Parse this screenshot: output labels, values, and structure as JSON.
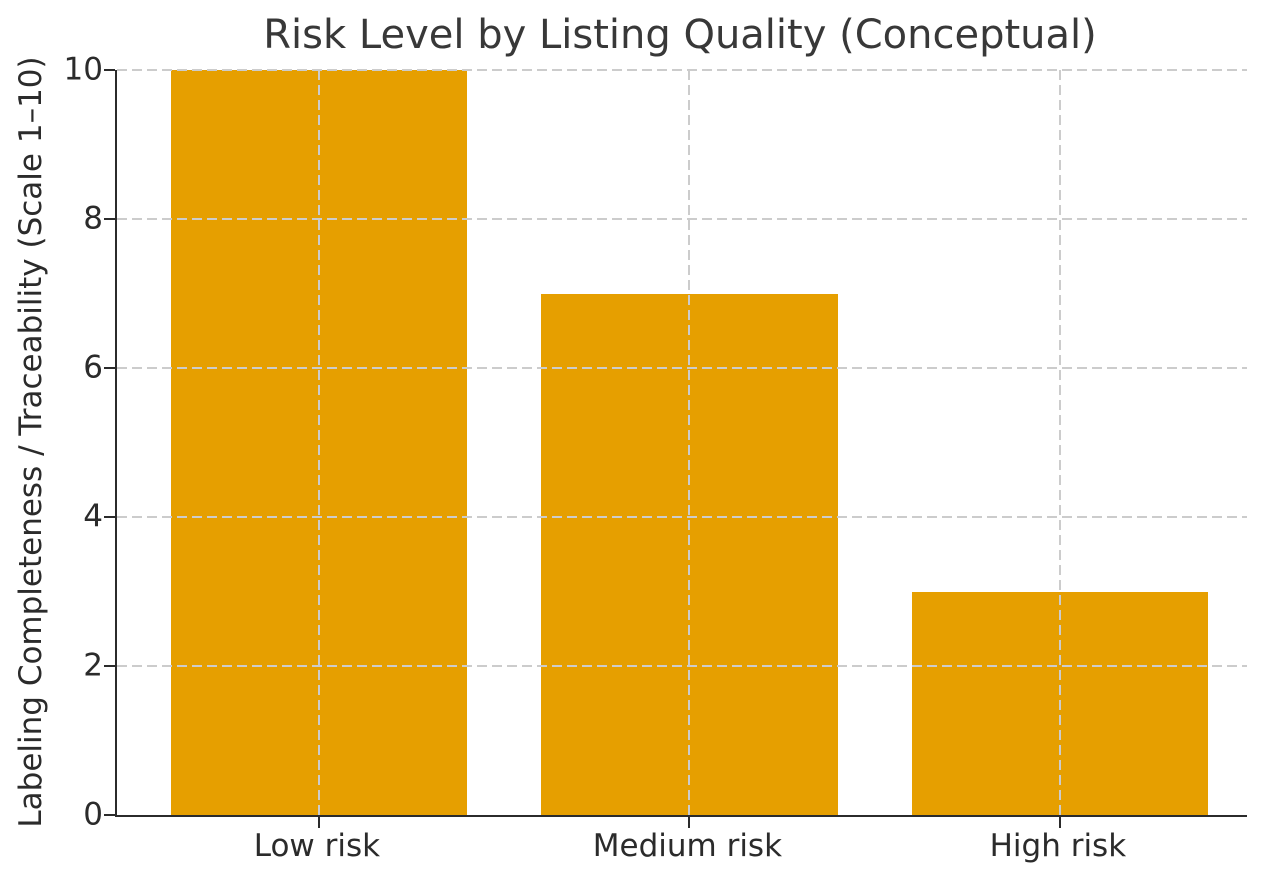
{
  "chart_data": {
    "type": "bar",
    "title": "Risk Level by Listing Quality (Conceptual)",
    "categories": [
      "Low risk",
      "Medium risk",
      "High risk"
    ],
    "values": [
      10,
      7,
      3
    ],
    "xlabel": "",
    "ylabel": "Labeling Completeness / Traceability (Scale 1–10)",
    "ylim": [
      0,
      10
    ],
    "yticks": [
      0,
      2,
      4,
      6,
      8,
      10
    ],
    "bar_color": "#E69F00",
    "bar_width_fraction": 0.8,
    "grid": true,
    "grid_line_style": "dashed",
    "grid_color": "#cccccc",
    "axis_color": "#2b2b2b",
    "text_color": "#2b2b2b",
    "title_color": "#383838",
    "background": "#ffffff",
    "legend_position": "none",
    "grid_above_bars": true,
    "visible_spines": [
      "left",
      "bottom"
    ]
  }
}
